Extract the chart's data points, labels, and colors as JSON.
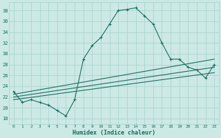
{
  "background_color": "#cce9e5",
  "grid_color": "#aad4cf",
  "line_color": "#1a6b60",
  "xlabel": "Humidex (Indice chaleur)",
  "xlim": [
    -0.5,
    23.5
  ],
  "ylim": [
    17,
    39.5
  ],
  "yticks": [
    18,
    20,
    22,
    24,
    26,
    28,
    30,
    32,
    34,
    36,
    38
  ],
  "xticks": [
    0,
    1,
    2,
    3,
    4,
    5,
    6,
    7,
    8,
    9,
    10,
    11,
    12,
    13,
    14,
    15,
    16,
    17,
    18,
    19,
    20,
    21,
    22,
    23
  ],
  "curve1_x": [
    0,
    1,
    2,
    3,
    4,
    5,
    6,
    7,
    8,
    9,
    10,
    11,
    12,
    13,
    14,
    15,
    16,
    17,
    18,
    19,
    20,
    21,
    22,
    23
  ],
  "curve1_y": [
    23.0,
    21.0,
    21.5,
    21.0,
    20.5,
    19.5,
    18.5,
    21.5,
    29.0,
    31.5,
    33.0,
    35.5,
    38.0,
    38.2,
    38.5,
    37.0,
    35.5,
    32.0,
    29.0,
    29.0,
    27.5,
    27.0,
    25.5,
    28.0
  ],
  "line1_x": [
    0,
    23
  ],
  "line1_y": [
    22.5,
    29.0
  ],
  "line2_x": [
    0,
    23
  ],
  "line2_y": [
    22.0,
    27.5
  ],
  "line3_x": [
    0,
    23
  ],
  "line3_y": [
    21.5,
    26.5
  ],
  "marker": "+"
}
